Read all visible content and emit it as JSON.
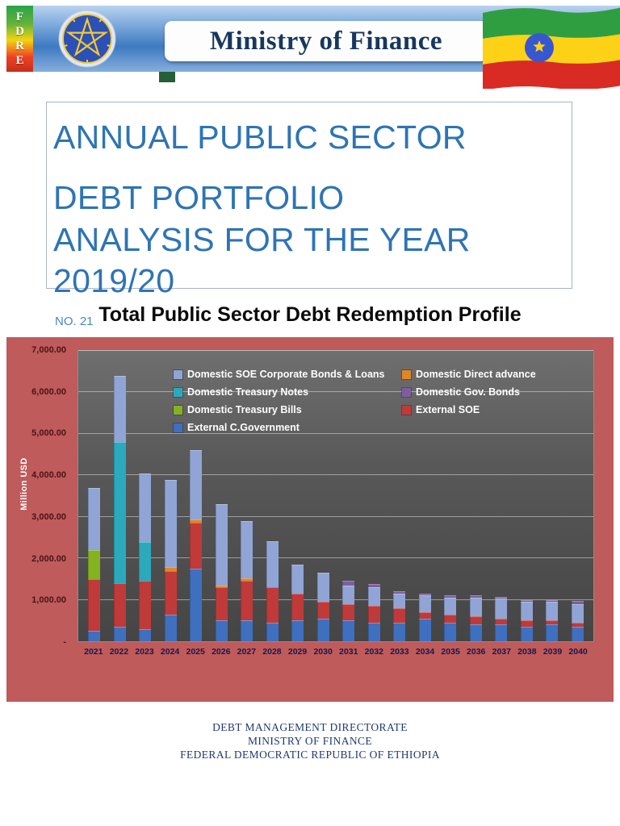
{
  "banner": {
    "fdre_text": "FDRE",
    "ministry_title": "Ministry of Finance"
  },
  "title_block": {
    "line1": "ANNUAL PUBLIC SECTOR",
    "line2": "DEBT PORTFOLIO ANALYSIS FOR THE YEAR 2019/20",
    "report_no": "NO. 21"
  },
  "chart": {
    "title": "Total Public Sector Debt Redemption Profile",
    "y_axis_title": "Million USD"
  },
  "chart_data": {
    "type": "bar",
    "stacked": true,
    "title": "Total Public Sector Debt Redemption Profile",
    "xlabel": "",
    "ylabel": "Million USD",
    "ylim": [
      0,
      7000
    ],
    "grid": true,
    "legend_position": "top-inside",
    "frame_background": "#BF5B5B",
    "plot_background": "#555555",
    "y_ticks": [
      {
        "label": "7,000.00",
        "value": 7000
      },
      {
        "label": "6,000.00",
        "value": 6000
      },
      {
        "label": "5,000.00",
        "value": 5000
      },
      {
        "label": "4,000.00",
        "value": 4000
      },
      {
        "label": "3,000.00",
        "value": 3000
      },
      {
        "label": "2,000.00",
        "value": 2000
      },
      {
        "label": "1,000.00",
        "value": 1000
      },
      {
        "label": "-",
        "value": 0
      }
    ],
    "categories": [
      "2021",
      "2022",
      "2023",
      "2024",
      "2025",
      "2026",
      "2027",
      "2028",
      "2029",
      "2030",
      "2031",
      "2032",
      "2033",
      "2034",
      "2035",
      "2036",
      "2037",
      "2038",
      "2039",
      "2040"
    ],
    "series": [
      {
        "name": "External C.Government",
        "color": "#3F6FBF",
        "values": [
          250,
          350,
          300,
          650,
          1750,
          500,
          500,
          450,
          500,
          550,
          500,
          450,
          450,
          550,
          450,
          400,
          400,
          350,
          400,
          350
        ]
      },
      {
        "name": "External SOE",
        "color": "#C03A3A",
        "values": [
          1250,
          1050,
          1150,
          1050,
          1100,
          800,
          950,
          850,
          650,
          400,
          400,
          400,
          350,
          150,
          200,
          200,
          150,
          150,
          100,
          100
        ]
      },
      {
        "name": "Domestic Treasury Bills",
        "color": "#84B221",
        "values": [
          700,
          0,
          0,
          0,
          0,
          0,
          0,
          0,
          0,
          0,
          0,
          0,
          0,
          0,
          0,
          0,
          0,
          0,
          0,
          0
        ]
      },
      {
        "name": "Domestic Treasury Notes",
        "color": "#2CA9BC",
        "values": [
          0,
          3400,
          950,
          0,
          0,
          0,
          0,
          0,
          0,
          0,
          0,
          0,
          0,
          0,
          0,
          0,
          0,
          0,
          0,
          0
        ]
      },
      {
        "name": "Domestic Direct advance",
        "color": "#E08626",
        "values": [
          0,
          0,
          0,
          80,
          80,
          50,
          60,
          0,
          0,
          0,
          0,
          0,
          0,
          0,
          0,
          0,
          0,
          0,
          0,
          0
        ]
      },
      {
        "name": "Domestic SOE Corporate Bonds & Loans",
        "color": "#90A5D5",
        "values": [
          1500,
          1600,
          1650,
          2100,
          1670,
          1950,
          1390,
          1120,
          700,
          700,
          450,
          450,
          350,
          400,
          400,
          450,
          480,
          450,
          450,
          450
        ]
      },
      {
        "name": "Domestic Gov. Bonds",
        "color": "#7D5FA0",
        "values": [
          0,
          0,
          0,
          0,
          0,
          0,
          0,
          0,
          0,
          0,
          100,
          80,
          50,
          50,
          50,
          50,
          50,
          50,
          50,
          80
        ]
      }
    ],
    "legend": [
      {
        "label": "Domestic SOE Corporate Bonds & Loans",
        "color": "#90A5D5"
      },
      {
        "label": "Domestic Direct advance",
        "color": "#E08626"
      },
      {
        "label": "Domestic Treasury Notes",
        "color": "#2CA9BC"
      },
      {
        "label": "Domestic Gov. Bonds",
        "color": "#7D5FA0"
      },
      {
        "label": "Domestic Treasury Bills",
        "color": "#84B221"
      },
      {
        "label": "External SOE",
        "color": "#C03A3A"
      },
      {
        "label": "External C.Government",
        "color": "#3F6FBF"
      }
    ]
  },
  "footer": {
    "lines": [
      "DEBT MANAGEMENT DIRECTORATE",
      "MINISTRY OF FINANCE",
      "FEDERAL DEMOCRATIC REPUBLIC OF ETHIOPIA"
    ]
  }
}
